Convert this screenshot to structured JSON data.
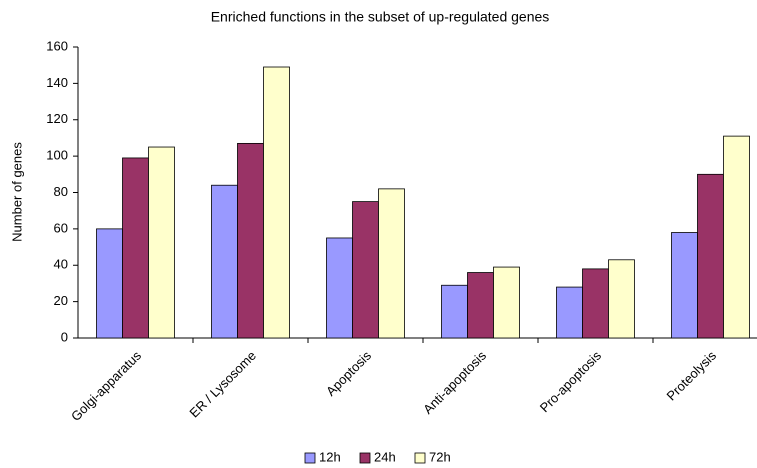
{
  "chart_data": {
    "type": "bar",
    "title": "Enriched functions in the subset of up-regulated  genes",
    "y_label": "Number of genes",
    "categories": [
      "Golgi-apparatus",
      "ER / Lysosome",
      "Apoptosis",
      "Anti-apoptosis",
      "Pro-apoptosis",
      "Proteolysis"
    ],
    "series": [
      {
        "name": "12h",
        "color": "#9999ff",
        "values": [
          60,
          84,
          55,
          29,
          28,
          58
        ]
      },
      {
        "name": "24h",
        "color": "#993366",
        "values": [
          99,
          107,
          75,
          36,
          38,
          90
        ]
      },
      {
        "name": "72h",
        "color": "#ffffcc",
        "values": [
          105,
          149,
          82,
          39,
          43,
          111
        ]
      }
    ],
    "ylim": [
      0,
      160
    ],
    "yticks": [
      0,
      20,
      40,
      60,
      80,
      100,
      120,
      140,
      160
    ],
    "grid": false,
    "legend": "bottom"
  }
}
